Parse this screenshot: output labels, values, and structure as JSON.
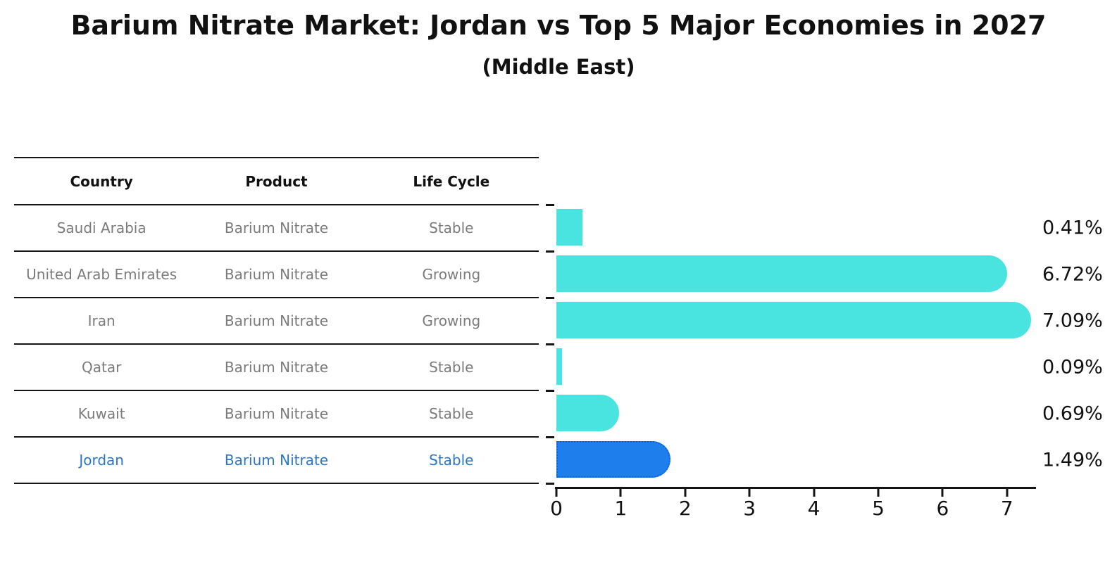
{
  "chart_data": {
    "type": "bar",
    "orientation": "horizontal",
    "title": "Barium Nitrate Market: Jordan vs Top 5 Major Economies in 2027",
    "subtitle": "(Middle East)",
    "categories": [
      "Saudi Arabia",
      "United Arab Emirates",
      "Iran",
      "Qatar",
      "Kuwait",
      "Jordan"
    ],
    "values": [
      0.41,
      6.72,
      7.09,
      0.09,
      0.69,
      1.49
    ],
    "value_labels": [
      "0.41%",
      "6.72%",
      "7.09%",
      "0.09%",
      "0.69%",
      "1.49%"
    ],
    "xlim": [
      0,
      7.48
    ],
    "xticks": [
      "0",
      "1",
      "2",
      "3",
      "4",
      "5",
      "6",
      "7"
    ],
    "grid": false,
    "legend": false,
    "bar_color": "#4ae4e0",
    "highlight_index": 5,
    "highlight_color": "#1e7eeb",
    "highlight_border_color": "#0e62d8",
    "axis_color": "#141414",
    "label_color": "#111111"
  },
  "table": {
    "columns": [
      "Country",
      "Product",
      "Life Cycle"
    ],
    "rows": [
      {
        "country": "Saudi Arabia",
        "product": "Barium Nitrate",
        "life_cycle": "Stable",
        "highlighted": false
      },
      {
        "country": "United Arab Emirates",
        "product": "Barium Nitrate",
        "life_cycle": "Growing",
        "highlighted": false
      },
      {
        "country": "Iran",
        "product": "Barium Nitrate",
        "life_cycle": "Growing",
        "highlighted": false
      },
      {
        "country": "Qatar",
        "product": "Barium Nitrate",
        "life_cycle": "Stable",
        "highlighted": false
      },
      {
        "country": "Kuwait",
        "product": "Barium Nitrate",
        "life_cycle": "Stable",
        "highlighted": true,
        "note": "highlighted row uses blue text",
        "highlighted_fix": false
      },
      {
        "country": "Jordan",
        "product": "Barium Nitrate",
        "life_cycle": "Stable",
        "highlighted": true
      }
    ],
    "row_text_color": "#7b7b7b",
    "highlight_text_color": "#2b76c5"
  }
}
